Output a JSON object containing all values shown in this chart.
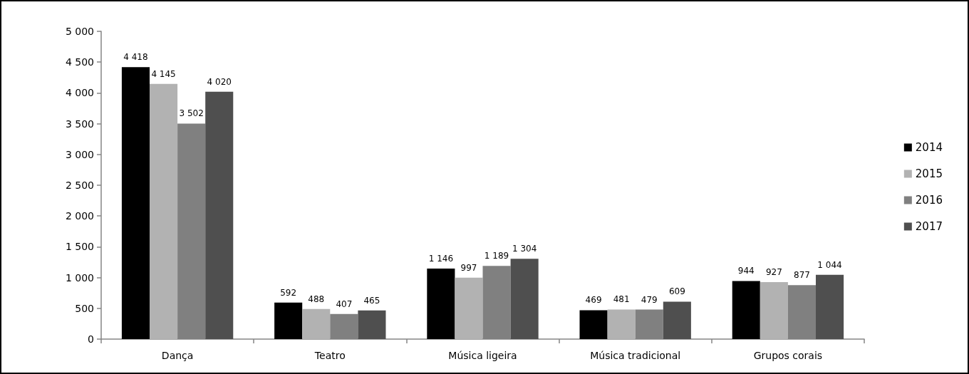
{
  "chart_data": {
    "type": "bar",
    "categories": [
      "Dança",
      "Teatro",
      "Música ligeira",
      "Música tradicional",
      "Grupos corais"
    ],
    "series": [
      {
        "name": "2014",
        "color": "#000000",
        "values": [
          4418,
          592,
          1146,
          469,
          944
        ],
        "value_labels": [
          "4 418",
          "592",
          "1 146",
          "469",
          "944"
        ]
      },
      {
        "name": "2015",
        "color": "#b2b2b2",
        "values": [
          4145,
          488,
          997,
          481,
          927
        ],
        "value_labels": [
          "4 145",
          "488",
          "997",
          "481",
          "927"
        ]
      },
      {
        "name": "2016",
        "color": "#808080",
        "values": [
          3502,
          407,
          1189,
          479,
          877
        ],
        "value_labels": [
          "3 502",
          "407",
          "1 189",
          "479",
          "877"
        ]
      },
      {
        "name": "2017",
        "color": "#4f4f4f",
        "values": [
          4020,
          465,
          1304,
          609,
          1044
        ],
        "value_labels": [
          "4 020",
          "465",
          "1 304",
          "609",
          "1 044"
        ]
      }
    ],
    "ylim": [
      0,
      5000
    ],
    "yticks": [
      0,
      500,
      {
        "value": 1000,
        "label": "1 000"
      },
      {
        "value": 1500,
        "label": "1 500"
      },
      {
        "value": 2000,
        "label": "2 000"
      },
      {
        "value": 2500,
        "label": "2 500"
      },
      {
        "value": 3000,
        "label": "3 000"
      },
      {
        "value": 3500,
        "label": "3 500"
      },
      {
        "value": 4000,
        "label": "4 000"
      },
      {
        "value": 4500,
        "label": "4 500"
      },
      {
        "value": 5000,
        "label": "5 000"
      }
    ],
    "legend": "right"
  }
}
